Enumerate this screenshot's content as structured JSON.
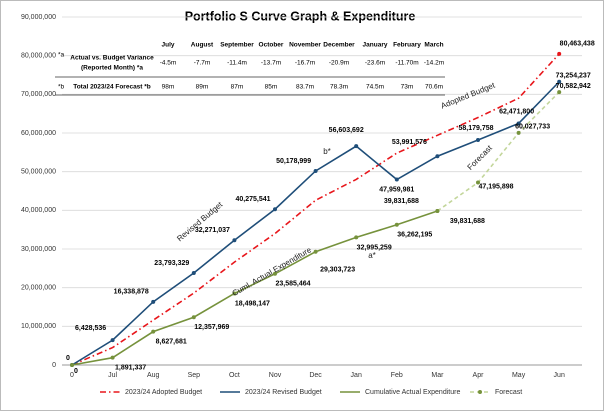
{
  "chart_data": {
    "type": "line",
    "title": "Portfolio S Curve Graph & Expenditure",
    "categories": [
      "0",
      "Jul",
      "Aug",
      "Sep",
      "Oct",
      "Nov",
      "Dec",
      "Jan",
      "Feb",
      "Mar",
      "Apr",
      "May",
      "Jun"
    ],
    "series": [
      {
        "name": "2023/24 Adopted Budget",
        "color": "#e8161b",
        "dash": "dashdot",
        "marker": false,
        "values": [
          0,
          4500000,
          11600000,
          18600000,
          26600000,
          34000000,
          42600000,
          48000000,
          54800000,
          59400000,
          64000000,
          69000000,
          80463438
        ],
        "value_labels": [
          null,
          null,
          null,
          null,
          null,
          null,
          null,
          null,
          null,
          null,
          null,
          null,
          "80,463,438"
        ],
        "label_color": "#e8161b"
      },
      {
        "name": "2023/24 Revised Budget",
        "color": "#1f4e79",
        "dash": null,
        "marker": true,
        "values": [
          0,
          6428536,
          16338878,
          23793329,
          32271037,
          40275541,
          50178999,
          56603692,
          47959981,
          53991576,
          58179758,
          62471800,
          73254237
        ],
        "value_labels": [
          "0",
          "6,428,536",
          "16,338,878",
          "23,793,329",
          "32,271,037",
          "40,275,541",
          "50,178,999",
          "56,603,692",
          "47,959,981",
          "53,991,576",
          "58,179,758",
          "62,471,800",
          "73,254,237"
        ],
        "label_color": "#0070c0"
      },
      {
        "name": "Cumulative Actual Expenditure",
        "color": "#76923c",
        "dash": null,
        "marker": true,
        "values": [
          0,
          1891337,
          8627681,
          12357969,
          18498147,
          23585464,
          29303723,
          32995259,
          36262195,
          39831688,
          null,
          null,
          null
        ],
        "value_labels": [
          "0",
          "1,891,337",
          "8,627,681",
          "12,357,969",
          "18,498,147",
          "23,585,464",
          "29,303,723",
          "32,995,259",
          "36,262,195",
          "39,831,688",
          null,
          null,
          null
        ],
        "label_color": "#76923c"
      },
      {
        "name": "Forecast",
        "color": "#c3d69b",
        "dash": "dashed",
        "marker": true,
        "values": [
          null,
          null,
          null,
          null,
          null,
          null,
          null,
          null,
          null,
          39831688,
          47195898,
          60027733,
          70582942
        ],
        "value_labels": [
          null,
          null,
          null,
          null,
          null,
          null,
          null,
          null,
          null,
          "39,831,688",
          "47,195,898",
          "60,027,733",
          "70,582,942"
        ],
        "label_color": "#76923c"
      }
    ],
    "ylim": [
      0,
      90000000
    ],
    "yticks": [
      0,
      {
        "value": 10000000,
        "label": "10,000,000"
      },
      {
        "value": 20000000,
        "label": "20,000,000"
      },
      {
        "value": 30000000,
        "label": "30,000,000"
      },
      {
        "value": 40000000,
        "label": "40,000,000"
      },
      {
        "value": 50000000,
        "label": "50,000,000"
      },
      {
        "value": 60000000,
        "label": "60,000,000"
      },
      {
        "value": 70000000,
        "label": "70,000,000"
      },
      {
        "value": 80000000,
        "label": "80,000,000"
      },
      {
        "value": 90000000,
        "label": "90,000,000"
      }
    ],
    "grid": true,
    "legend": "bottom",
    "annotations": [
      "Revised Budget",
      "Adopted Budget",
      "Cuml. Actual Expenditure",
      "Forecast",
      "b*",
      "a*"
    ]
  },
  "table": {
    "header": [
      "July",
      "August",
      "September",
      "October",
      "November",
      "December",
      "January",
      "February",
      "March"
    ],
    "rows": [
      {
        "key": "*a",
        "label_lines": [
          "Actual vs. Budget Variance",
          "(Reported Month) *a"
        ],
        "values": [
          "-4.5m",
          "-7.7m",
          "-11.4m",
          "-13.7m",
          "-16.7m",
          "-20.9m",
          "-23.6m",
          "-11.70m",
          "-14.2m"
        ]
      },
      {
        "key": "*b",
        "label_lines": [
          "Total 2023/24 Forecast *b"
        ],
        "values": [
          "98m",
          "89m",
          "87m",
          "85m",
          "83.7m",
          "78.3m",
          "74.5m",
          "73m",
          "70.6m"
        ]
      }
    ]
  }
}
